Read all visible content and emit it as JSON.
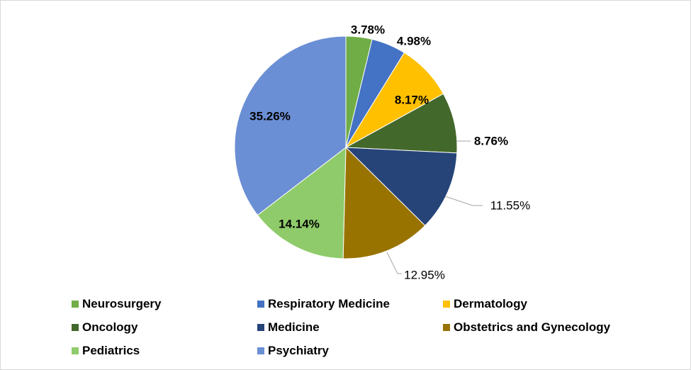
{
  "chart_data": {
    "type": "pie",
    "series": [
      {
        "name": "Neurosurgery",
        "value": 3.78,
        "label": "3.78%",
        "color": "#70AD47"
      },
      {
        "name": "Respiratory Medicine",
        "value": 4.98,
        "label": "4.98%",
        "color": "#4472C4"
      },
      {
        "name": "Dermatology",
        "value": 8.17,
        "label": "8.17%",
        "color": "#FFC000"
      },
      {
        "name": "Oncology",
        "value": 8.76,
        "label": "8.76%",
        "color": "#43682B"
      },
      {
        "name": "Medicine",
        "value": 11.55,
        "label": "11.55%",
        "color": "#264478"
      },
      {
        "name": "Obstetrics and Gynecology",
        "value": 12.95,
        "label": "12.95%",
        "color": "#997300"
      },
      {
        "name": "Pediatrics",
        "value": 14.14,
        "label": "14.14%",
        "color": "#8FCB6A"
      },
      {
        "name": "Psychiatry",
        "value": 35.26,
        "label": "35.26%",
        "color": "#6B8FD4"
      }
    ],
    "legend_position": "bottom",
    "start_angle": "top, clockwise"
  }
}
